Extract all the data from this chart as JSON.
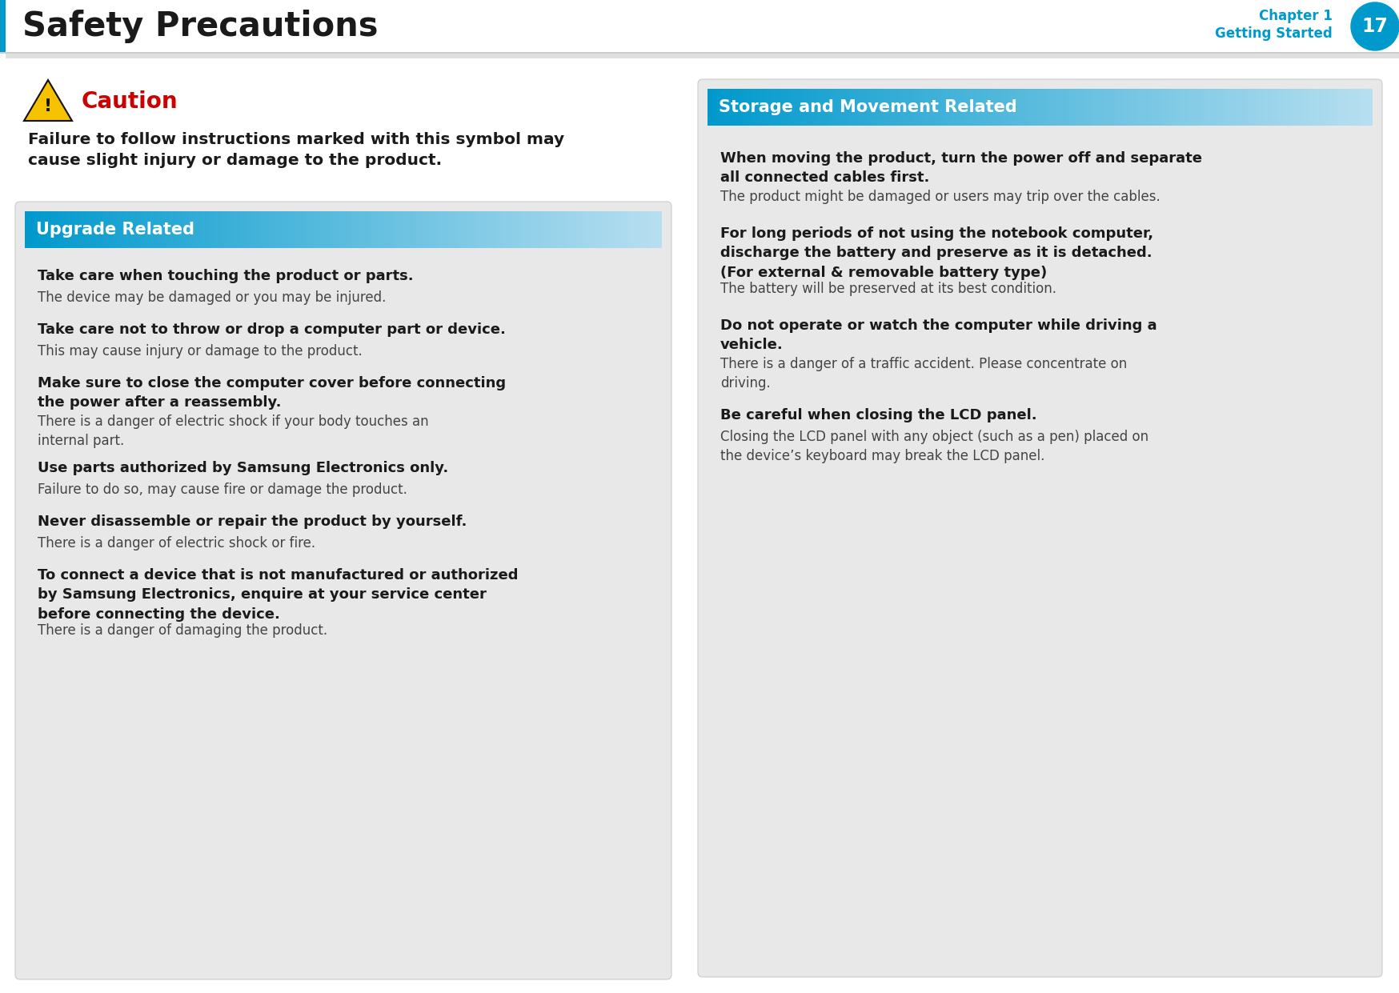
{
  "page_bg": "#ffffff",
  "header_bg": "#ffffff",
  "header_title": "Safety Precautions",
  "header_title_color": "#1a1a1a",
  "header_left_bar_color": "#0099cc",
  "chapter_text": "Chapter 1",
  "getting_started_text": "Getting Started",
  "chapter_color": "#0099cc",
  "page_num": "17",
  "page_num_bg": "#0099cc",
  "page_num_color": "#ffffff",
  "divider_color": "#bbbbbb",
  "caution_color": "#cc0000",
  "caution_text": "Caution",
  "caution_desc": "Failure to follow instructions marked with this symbol may\ncause slight injury or damage to the product.",
  "left_box_bg": "#e8e8e8",
  "right_box_bg": "#e8e8e8",
  "section_header_left": "Upgrade Related",
  "section_header_right": "Storage and Movement Related",
  "section_header_text_color": "#ffffff",
  "left_items": [
    {
      "bold": "Take care when touching the product or parts.",
      "normal": "The device may be damaged or you may be injured."
    },
    {
      "bold": "Take care not to throw or drop a computer part or device.",
      "normal": "This may cause injury or damage to the product."
    },
    {
      "bold": "Make sure to close the computer cover before connecting\nthe power after a reassembly.",
      "normal": "There is a danger of electric shock if your body touches an\ninternal part."
    },
    {
      "bold": "Use parts authorized by Samsung Electronics only.",
      "normal": "Failure to do so, may cause fire or damage the product."
    },
    {
      "bold": "Never disassemble or repair the product by yourself.",
      "normal": "There is a danger of electric shock or fire."
    },
    {
      "bold": "To connect a device that is not manufactured or authorized\nby Samsung Electronics, enquire at your service center\nbefore connecting the device.",
      "normal": "There is a danger of damaging the product."
    }
  ],
  "right_items": [
    {
      "bold": "When moving the product, turn the power off and separate\nall connected cables first.",
      "normal": "The product might be damaged or users may trip over the cables."
    },
    {
      "bold": "For long periods of not using the notebook computer,\ndischarge the battery and preserve as it is detached.\n(For external & removable battery type)",
      "normal": "The battery will be preserved at its best condition."
    },
    {
      "bold": "Do not operate or watch the computer while driving a\nvehicle.",
      "normal": "There is a danger of a traffic accident. Please concentrate on\ndriving."
    },
    {
      "bold": "Be careful when closing the LCD panel.",
      "normal": "Closing the LCD panel with any object (such as a pen) placed on\nthe device’s keyboard may break the LCD panel."
    }
  ]
}
